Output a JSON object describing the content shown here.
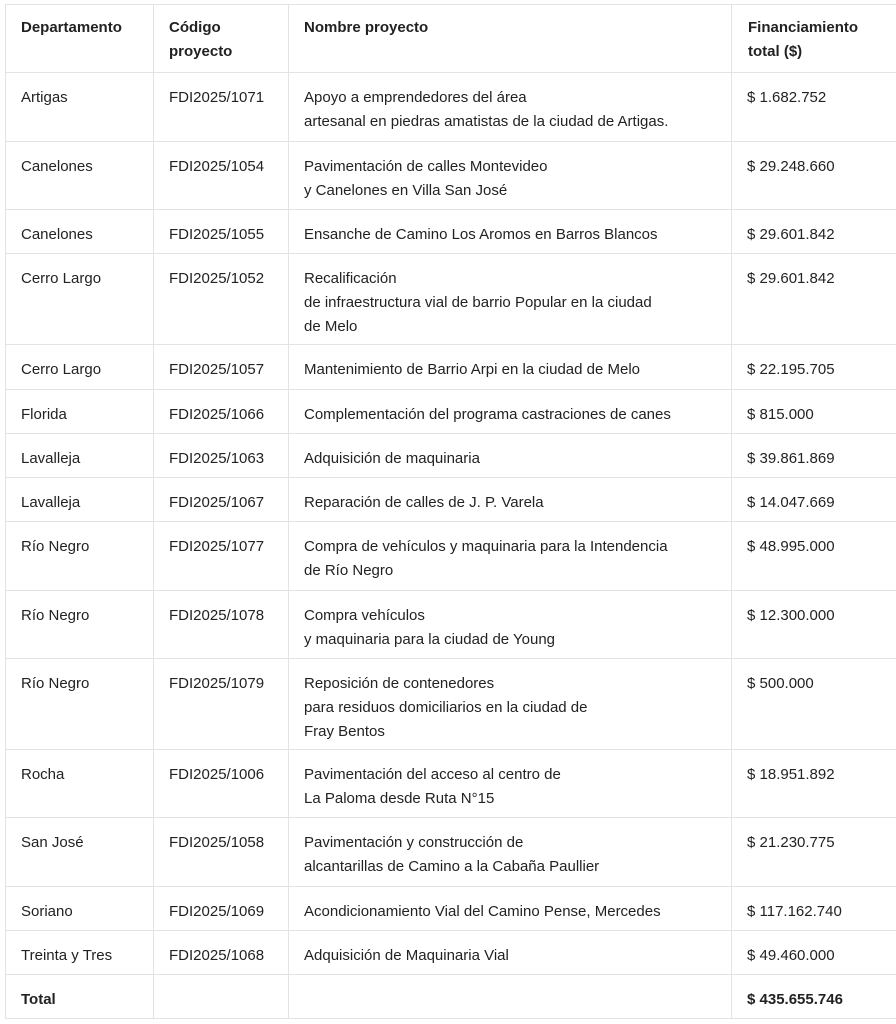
{
  "headers": [
    "Departamento",
    "Código proyecto",
    "Nombre proyecto",
    "Financiamiento total ($)"
  ],
  "header_lines": [
    [
      "Departamento"
    ],
    [
      "Código",
      "proyecto"
    ],
    [
      "Nombre proyecto"
    ],
    [
      "Financiamiento",
      "total ($)"
    ]
  ],
  "rows": [
    {
      "dep": "Artigas",
      "code": "FDI2025/1071",
      "name": [
        "Apoyo a emprendedores del área",
        "artesanal en piedras amatistas de la ciudad de Artigas."
      ],
      "amount": "$ 1.682.752"
    },
    {
      "dep": "Canelones",
      "code": "FDI2025/1054",
      "name": [
        "Pavimentación de calles Montevideo",
        "y Canelones en Villa San José"
      ],
      "amount": "$ 29.248.660"
    },
    {
      "dep": "Canelones",
      "code": "FDI2025/1055",
      "name": [
        "Ensanche de Camino Los Aromos en Barros Blancos"
      ],
      "amount": "$ 29.601.842"
    },
    {
      "dep": "Cerro Largo",
      "code": "FDI2025/1052",
      "name": [
        "Recalificación",
        "de infraestructura vial de barrio Popular en la ciudad",
        "de Melo"
      ],
      "amount": "$ 29.601.842"
    },
    {
      "dep": "Cerro Largo",
      "code": "FDI2025/1057",
      "name": [
        "Mantenimiento de Barrio Arpi en la ciudad de Melo"
      ],
      "amount": "$ 22.195.705"
    },
    {
      "dep": "Florida",
      "code": "FDI2025/1066",
      "name": [
        "Complementación del programa castraciones de canes"
      ],
      "amount": "$ 815.000"
    },
    {
      "dep": "Lavalleja",
      "code": "FDI2025/1063",
      "name": [
        "Adquisición de maquinaria"
      ],
      "amount": "$ 39.861.869"
    },
    {
      "dep": "Lavalleja",
      "code": "FDI2025/1067",
      "name": [
        "Reparación de calles de J. P. Varela"
      ],
      "amount": "$ 14.047.669"
    },
    {
      "dep": "Río Negro",
      "code": "FDI2025/1077",
      "name": [
        "Compra de vehículos y maquinaria para la Intendencia",
        "de Río Negro"
      ],
      "amount": "$ 48.995.000"
    },
    {
      "dep": "Río Negro",
      "code": "FDI2025/1078",
      "name": [
        "Compra vehículos",
        "y maquinaria para la ciudad de Young"
      ],
      "amount": "$ 12.300.000"
    },
    {
      "dep": "Río Negro",
      "code": "FDI2025/1079",
      "name": [
        "Reposición de contenedores",
        "para residuos domiciliarios en la ciudad de",
        "Fray Bentos"
      ],
      "amount": "$ 500.000"
    },
    {
      "dep": "Rocha",
      "code": "FDI2025/1006",
      "name": [
        "Pavimentación del acceso al centro de",
        "La Paloma desde Ruta N°15"
      ],
      "amount": "$ 18.951.892"
    },
    {
      "dep": "San José",
      "code": "FDI2025/1058",
      "name": [
        "Pavimentación y construcción de",
        "alcantarillas de Camino a la Cabaña Paullier"
      ],
      "amount": "$ 21.230.775"
    },
    {
      "dep": "Soriano",
      "code": "FDI2025/1069",
      "name": [
        "Acondicionamiento Vial del Camino Pense, Mercedes"
      ],
      "amount": "$ 117.162.740"
    },
    {
      "dep": "Treinta y Tres",
      "code": "FDI2025/1068",
      "name": [
        "Adquisición de Maquinaria Vial"
      ],
      "amount": "$ 49.460.000"
    }
  ],
  "total": {
    "label": "Total",
    "amount": "$ 435.655.746"
  }
}
